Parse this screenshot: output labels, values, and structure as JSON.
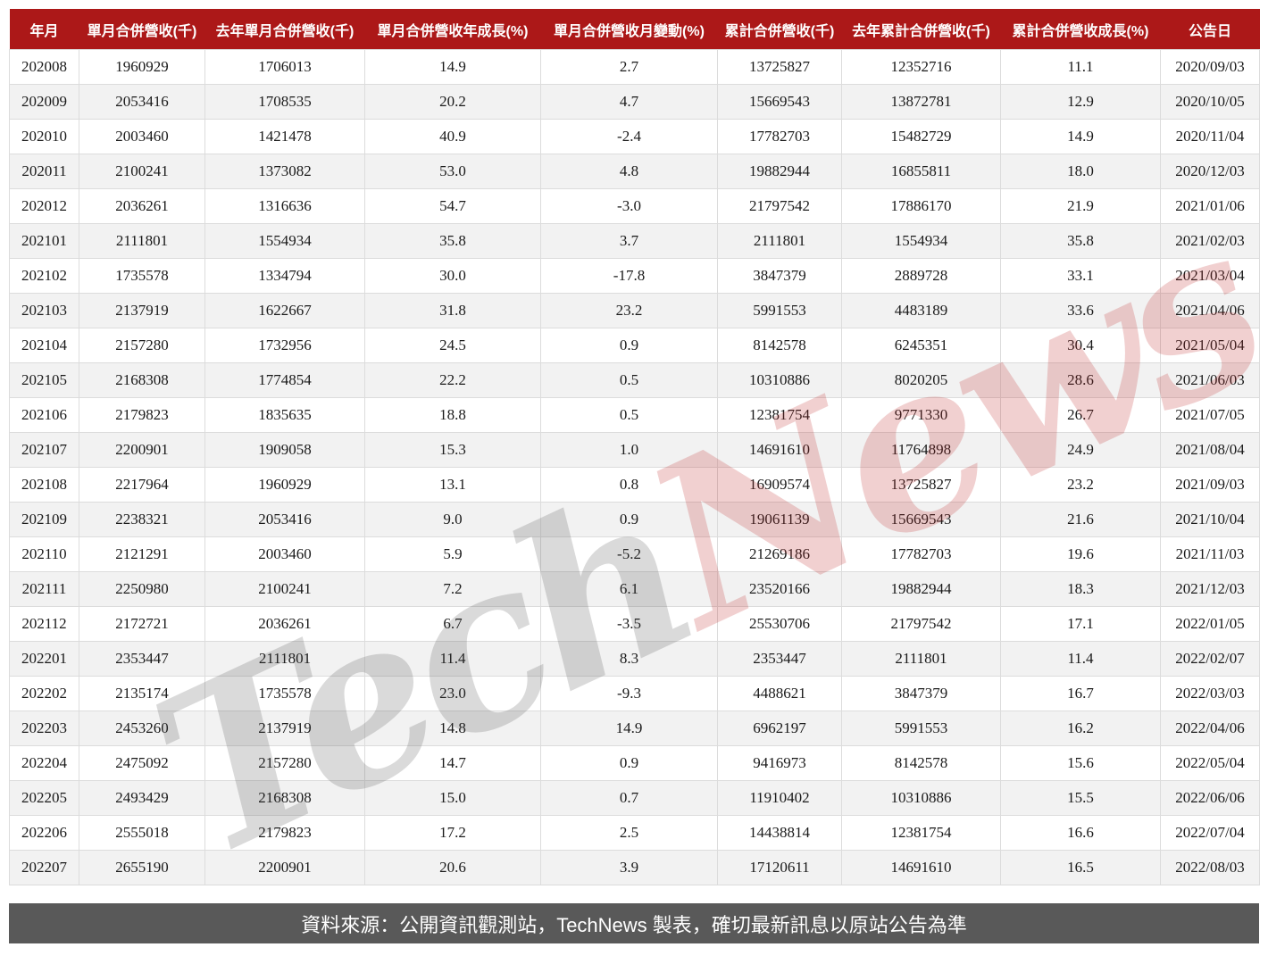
{
  "chart_data": {
    "type": "table",
    "columns": [
      "年月",
      "單月合併營收(千)",
      "去年單月合併營收(千)",
      "單月合併營收年成長(%)",
      "單月合併營收月變動(%)",
      "累計合併營收(千)",
      "去年累計合併營收(千)",
      "累計合併營收成長(%)",
      "公告日"
    ],
    "rows": [
      [
        "202008",
        "1960929",
        "1706013",
        "14.9",
        "2.7",
        "13725827",
        "12352716",
        "11.1",
        "2020/09/03"
      ],
      [
        "202009",
        "2053416",
        "1708535",
        "20.2",
        "4.7",
        "15669543",
        "13872781",
        "12.9",
        "2020/10/05"
      ],
      [
        "202010",
        "2003460",
        "1421478",
        "40.9",
        "-2.4",
        "17782703",
        "15482729",
        "14.9",
        "2020/11/04"
      ],
      [
        "202011",
        "2100241",
        "1373082",
        "53.0",
        "4.8",
        "19882944",
        "16855811",
        "18.0",
        "2020/12/03"
      ],
      [
        "202012",
        "2036261",
        "1316636",
        "54.7",
        "-3.0",
        "21797542",
        "17886170",
        "21.9",
        "2021/01/06"
      ],
      [
        "202101",
        "2111801",
        "1554934",
        "35.8",
        "3.7",
        "2111801",
        "1554934",
        "35.8",
        "2021/02/03"
      ],
      [
        "202102",
        "1735578",
        "1334794",
        "30.0",
        "-17.8",
        "3847379",
        "2889728",
        "33.1",
        "2021/03/04"
      ],
      [
        "202103",
        "2137919",
        "1622667",
        "31.8",
        "23.2",
        "5991553",
        "4483189",
        "33.6",
        "2021/04/06"
      ],
      [
        "202104",
        "2157280",
        "1732956",
        "24.5",
        "0.9",
        "8142578",
        "6245351",
        "30.4",
        "2021/05/04"
      ],
      [
        "202105",
        "2168308",
        "1774854",
        "22.2",
        "0.5",
        "10310886",
        "8020205",
        "28.6",
        "2021/06/03"
      ],
      [
        "202106",
        "2179823",
        "1835635",
        "18.8",
        "0.5",
        "12381754",
        "9771330",
        "26.7",
        "2021/07/05"
      ],
      [
        "202107",
        "2200901",
        "1909058",
        "15.3",
        "1.0",
        "14691610",
        "11764898",
        "24.9",
        "2021/08/04"
      ],
      [
        "202108",
        "2217964",
        "1960929",
        "13.1",
        "0.8",
        "16909574",
        "13725827",
        "23.2",
        "2021/09/03"
      ],
      [
        "202109",
        "2238321",
        "2053416",
        "9.0",
        "0.9",
        "19061139",
        "15669543",
        "21.6",
        "2021/10/04"
      ],
      [
        "202110",
        "2121291",
        "2003460",
        "5.9",
        "-5.2",
        "21269186",
        "17782703",
        "19.6",
        "2021/11/03"
      ],
      [
        "202111",
        "2250980",
        "2100241",
        "7.2",
        "6.1",
        "23520166",
        "19882944",
        "18.3",
        "2021/12/03"
      ],
      [
        "202112",
        "2172721",
        "2036261",
        "6.7",
        "-3.5",
        "25530706",
        "21797542",
        "17.1",
        "2022/01/05"
      ],
      [
        "202201",
        "2353447",
        "2111801",
        "11.4",
        "8.3",
        "2353447",
        "2111801",
        "11.4",
        "2022/02/07"
      ],
      [
        "202202",
        "2135174",
        "1735578",
        "23.0",
        "-9.3",
        "4488621",
        "3847379",
        "16.7",
        "2022/03/03"
      ],
      [
        "202203",
        "2453260",
        "2137919",
        "14.8",
        "14.9",
        "6962197",
        "5991553",
        "16.2",
        "2022/04/06"
      ],
      [
        "202204",
        "2475092",
        "2157280",
        "14.7",
        "0.9",
        "9416973",
        "8142578",
        "15.6",
        "2022/05/04"
      ],
      [
        "202205",
        "2493429",
        "2168308",
        "15.0",
        "0.7",
        "11910402",
        "10310886",
        "15.5",
        "2022/06/06"
      ],
      [
        "202206",
        "2555018",
        "2179823",
        "17.2",
        "2.5",
        "14438814",
        "12381754",
        "16.6",
        "2022/07/04"
      ],
      [
        "202207",
        "2655190",
        "2200901",
        "20.6",
        "3.9",
        "17120611",
        "14691610",
        "16.5",
        "2022/08/03"
      ]
    ],
    "title": "",
    "legend": [],
    "layout_hints": {
      "header_position": "top",
      "zebra_striping": true,
      "first_data_row_background": "white"
    }
  },
  "watermark": {
    "tech": "Tech",
    "news": "News"
  },
  "footer": {
    "text": "資料來源：公開資訊觀測站，TechNews 製表，確切最新訊息以原站公告為準"
  },
  "colors": {
    "header_bg": "#AC1818",
    "header_text": "#FFFFFF",
    "row_alt_bg": "#F2F2F2",
    "cell_border": "#DCDCDC",
    "body_text": "#1A1A1A",
    "footer_bg": "#595959",
    "footer_text": "#FFFFFF",
    "watermark_gray": "rgba(70,70,70,0.20)",
    "watermark_red": "rgba(190,40,40,0.22)"
  }
}
